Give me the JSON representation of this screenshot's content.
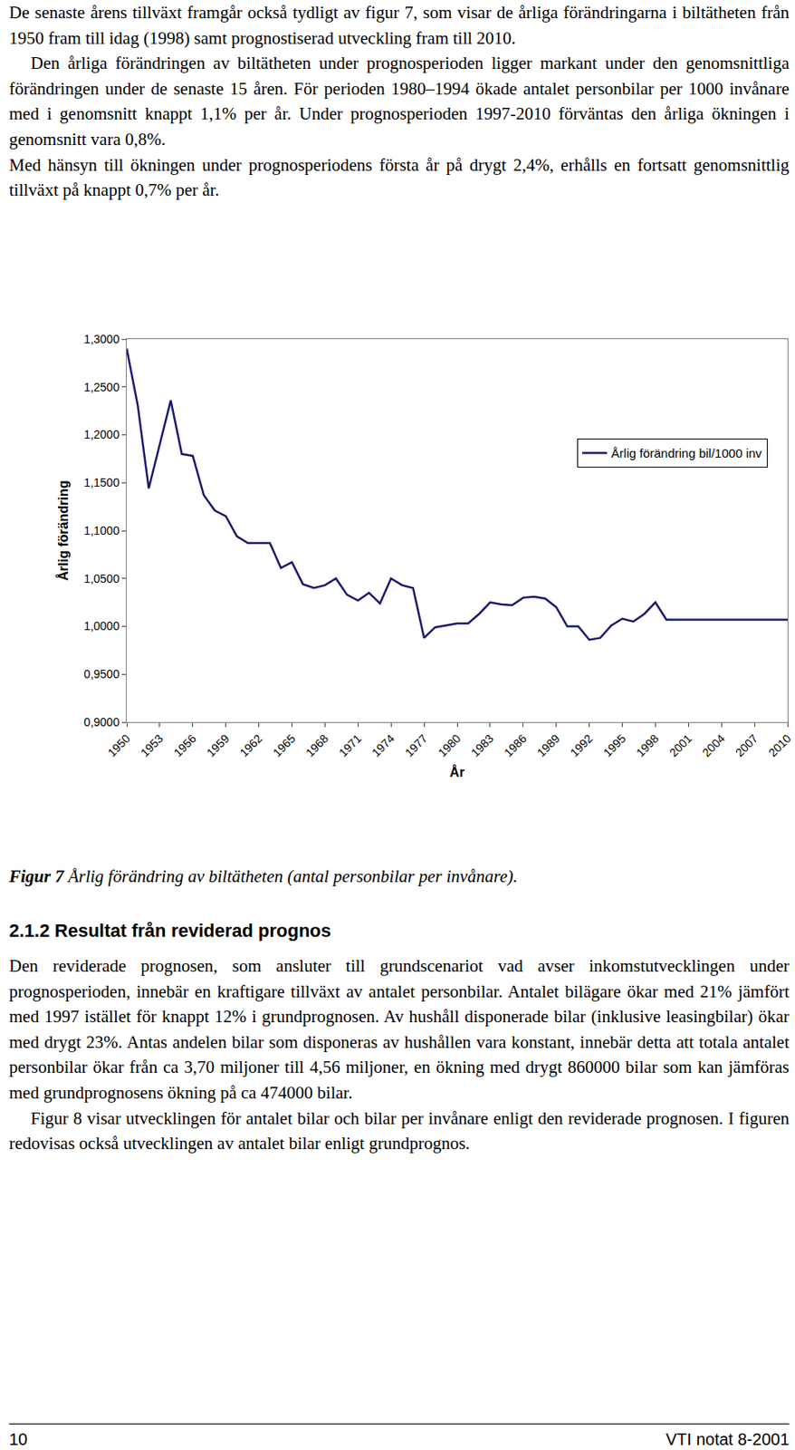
{
  "text_before": [
    "De senaste årens tillväxt framgår också tydligt av figur 7, som visar de årliga förändringarna i biltätheten från 1950 fram till idag (1998) samt prognostiserad utveckling fram till 2010.",
    "Den årliga förändringen av biltätheten under prognosperioden ligger markant under den genomsnittliga förändringen under de senaste 15 åren. För perioden 1980–1994 ökade antalet personbilar per 1000 invånare med i genomsnitt knappt 1,1% per år. Under prognosperioden 1997-2010 förväntas den årliga ökningen i genomsnitt vara 0,8%.",
    "Med hänsyn till ökningen under prognosperiodens första år på drygt 2,4%, erhålls en fortsatt genomsnittlig tillväxt på knappt 0,7% per år."
  ],
  "chart_data": {
    "type": "line",
    "x": [
      1950,
      1951,
      1952,
      1953,
      1954,
      1955,
      1956,
      1957,
      1958,
      1959,
      1960,
      1961,
      1962,
      1963,
      1964,
      1965,
      1966,
      1967,
      1968,
      1969,
      1970,
      1971,
      1972,
      1973,
      1974,
      1975,
      1976,
      1977,
      1978,
      1979,
      1980,
      1981,
      1982,
      1983,
      1984,
      1985,
      1986,
      1987,
      1988,
      1989,
      1990,
      1991,
      1992,
      1993,
      1994,
      1995,
      1996,
      1997,
      1998,
      1999,
      2000,
      2001,
      2002,
      2003,
      2004,
      2005,
      2006,
      2007,
      2008,
      2009,
      2010
    ],
    "series": [
      {
        "name": "Årlig förändring bil/1000 inv",
        "color": "#1a1a6e",
        "values": [
          1.29,
          1.231,
          1.144,
          1.191,
          1.236,
          1.18,
          1.178,
          1.137,
          1.121,
          1.115,
          1.094,
          1.087,
          1.087,
          1.087,
          1.061,
          1.067,
          1.044,
          1.04,
          1.043,
          1.05,
          1.033,
          1.027,
          1.035,
          1.024,
          1.05,
          1.043,
          1.04,
          0.988,
          0.999,
          1.001,
          1.003,
          1.003,
          1.013,
          1.025,
          1.023,
          1.022,
          1.03,
          1.031,
          1.029,
          1.02,
          1.0,
          1.0,
          0.986,
          0.988,
          1.001,
          1.008,
          1.005,
          1.013,
          1.025,
          1.007,
          1.007,
          1.007,
          1.007,
          1.007,
          1.007,
          1.007,
          1.007,
          1.007,
          1.007,
          1.007,
          1.007
        ]
      }
    ],
    "xlim": [
      1950,
      2010
    ],
    "xticks": [
      1950,
      1953,
      1956,
      1959,
      1962,
      1965,
      1968,
      1971,
      1974,
      1977,
      1980,
      1983,
      1986,
      1989,
      1992,
      1995,
      1998,
      2001,
      2004,
      2007,
      2010
    ],
    "ylim": [
      0.9,
      1.3
    ],
    "yticks": [
      {
        "value": 0.9,
        "label": "0,9000"
      },
      {
        "value": 0.95,
        "label": "0,9500"
      },
      {
        "value": 1.0,
        "label": "1,0000"
      },
      {
        "value": 1.05,
        "label": "1,0500"
      },
      {
        "value": 1.1,
        "label": "1,1000"
      },
      {
        "value": 1.15,
        "label": "1,1500"
      },
      {
        "value": 1.2,
        "label": "1,2000"
      },
      {
        "value": 1.25,
        "label": "1,2500"
      },
      {
        "value": 1.3,
        "label": "1,3000"
      }
    ],
    "x_label": "År",
    "y_label": "Årlig förändring",
    "grid": false,
    "legend": "top right"
  },
  "caption": {
    "label": "Figur 7",
    "text": "Årlig förändring av biltätheten (antal personbilar per invånare)."
  },
  "section_heading": "2.1.2 Resultat från reviderad prognos",
  "section_paragraphs": [
    "Den reviderade prognosen, som ansluter till grundscenariot vad avser inkomstutvecklingen under prognosperioden, innebär en kraftigare tillväxt av antalet personbilar. Antalet bilägare ökar med 21% jämfört med 1997 istället för knappt 12% i grundprognosen. Av hushåll disponerade bilar (inklusive leasingbilar) ökar med drygt 23%. Antas andelen bilar som disponeras av hushållen vara konstant, innebär detta att totala antalet personbilar ökar från ca 3,70 miljoner till 4,56 miljoner, en ökning med drygt 860000 bilar som kan jämföras med grundprognosens ökning på ca 474000 bilar.",
    "Figur 8 visar utvecklingen för antalet bilar och bilar per invånare enligt den reviderade prognosen. I figuren redovisas också utvecklingen av antalet bilar enligt grundprognos."
  ],
  "footer": {
    "page": "10",
    "report": "VTI notat 8-2001"
  }
}
